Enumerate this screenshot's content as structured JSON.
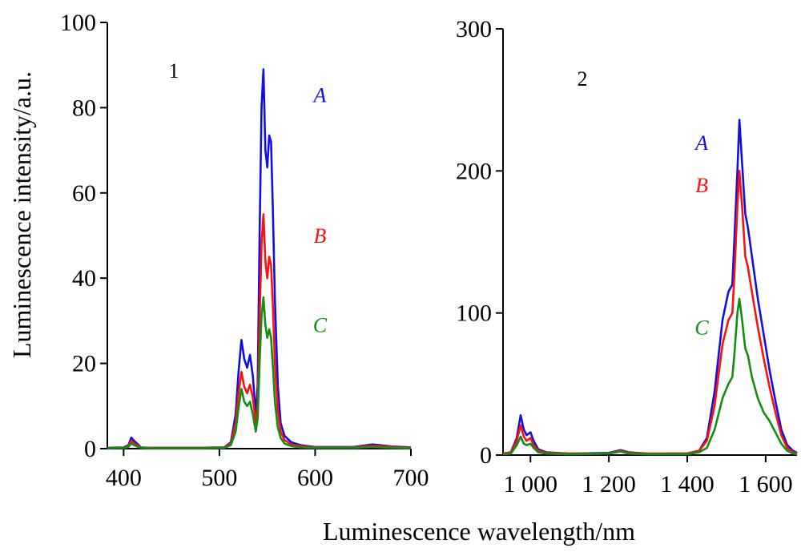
{
  "chart_data": [
    {
      "type": "line",
      "panel_label": "1",
      "ylabel": "Luminescence intensity/a.u.",
      "xlim": [
        383,
        700
      ],
      "ylim": [
        0,
        100
      ],
      "x_ticks": [
        {
          "value": 400,
          "label": "400"
        },
        {
          "value": 500,
          "label": "500"
        },
        {
          "value": 600,
          "label": "600"
        },
        {
          "value": 700,
          "label": "700"
        }
      ],
      "y_ticks": [
        {
          "value": 0,
          "label": "0"
        },
        {
          "value": 20,
          "label": "20"
        },
        {
          "value": 40,
          "label": "40"
        },
        {
          "value": 60,
          "label": "60"
        },
        {
          "value": 80,
          "label": "80"
        },
        {
          "value": 100,
          "label": "100"
        }
      ],
      "series": [
        {
          "name": "A",
          "color": "#1010e0",
          "label_pos": [
            605,
            83
          ],
          "points": [
            [
              383,
              0.2
            ],
            [
              400,
              0.3
            ],
            [
              405,
              0.8
            ],
            [
              408,
              2.6
            ],
            [
              411,
              1.8
            ],
            [
              414,
              1.2
            ],
            [
              418,
              0.3
            ],
            [
              425,
              0.2
            ],
            [
              480,
              0.2
            ],
            [
              505,
              0.3
            ],
            [
              512,
              1.5
            ],
            [
              517,
              8
            ],
            [
              520,
              18
            ],
            [
              523,
              25.5
            ],
            [
              526,
              21
            ],
            [
              529,
              19
            ],
            [
              532,
              22
            ],
            [
              535,
              17
            ],
            [
              538,
              8
            ],
            [
              540,
              15
            ],
            [
              542,
              50
            ],
            [
              544,
              80
            ],
            [
              546,
              89
            ],
            [
              548,
              70
            ],
            [
              550,
              66
            ],
            [
              552,
              73.5
            ],
            [
              554,
              72
            ],
            [
              556,
              55
            ],
            [
              558,
              35
            ],
            [
              561,
              15
            ],
            [
              564,
              6
            ],
            [
              568,
              3
            ],
            [
              575,
              1.5
            ],
            [
              585,
              0.8
            ],
            [
              600,
              0.4
            ],
            [
              640,
              0.4
            ],
            [
              650,
              0.7
            ],
            [
              660,
              1
            ],
            [
              668,
              0.8
            ],
            [
              680,
              0.5
            ],
            [
              700,
              0.3
            ]
          ]
        },
        {
          "name": "B",
          "color": "#ff1010",
          "label_pos": [
            605,
            50
          ],
          "points": [
            [
              383,
              0.2
            ],
            [
              400,
              0.2
            ],
            [
              405,
              0.6
            ],
            [
              408,
              1.8
            ],
            [
              411,
              1.2
            ],
            [
              414,
              0.8
            ],
            [
              418,
              0.2
            ],
            [
              425,
              0.2
            ],
            [
              480,
              0.2
            ],
            [
              505,
              0.3
            ],
            [
              512,
              1.2
            ],
            [
              517,
              6
            ],
            [
              520,
              13
            ],
            [
              523,
              18
            ],
            [
              526,
              14.5
            ],
            [
              529,
              13
            ],
            [
              532,
              15
            ],
            [
              535,
              12
            ],
            [
              538,
              6
            ],
            [
              540,
              10
            ],
            [
              542,
              30
            ],
            [
              544,
              48
            ],
            [
              546,
              55
            ],
            [
              548,
              44
            ],
            [
              550,
              40
            ],
            [
              552,
              45
            ],
            [
              554,
              43
            ],
            [
              556,
              33
            ],
            [
              558,
              20
            ],
            [
              561,
              9
            ],
            [
              564,
              4
            ],
            [
              568,
              2
            ],
            [
              575,
              1
            ],
            [
              585,
              0.6
            ],
            [
              600,
              0.3
            ],
            [
              640,
              0.3
            ],
            [
              650,
              0.5
            ],
            [
              660,
              0.7
            ],
            [
              668,
              0.6
            ],
            [
              680,
              0.4
            ],
            [
              700,
              0.2
            ]
          ]
        },
        {
          "name": "C",
          "color": "#109010",
          "label_pos": [
            605,
            29
          ],
          "points": [
            [
              383,
              0.1
            ],
            [
              400,
              0.2
            ],
            [
              405,
              0.4
            ],
            [
              408,
              1.2
            ],
            [
              411,
              0.8
            ],
            [
              414,
              0.5
            ],
            [
              418,
              0.2
            ],
            [
              425,
              0.1
            ],
            [
              480,
              0.1
            ],
            [
              505,
              0.2
            ],
            [
              512,
              0.8
            ],
            [
              517,
              4
            ],
            [
              520,
              9.5
            ],
            [
              523,
              14
            ],
            [
              526,
              11
            ],
            [
              529,
              10
            ],
            [
              532,
              11
            ],
            [
              535,
              8
            ],
            [
              538,
              4
            ],
            [
              540,
              7
            ],
            [
              542,
              20
            ],
            [
              544,
              31
            ],
            [
              546,
              35.5
            ],
            [
              548,
              29
            ],
            [
              550,
              26
            ],
            [
              552,
              28
            ],
            [
              554,
              26
            ],
            [
              556,
              19
            ],
            [
              558,
              11
            ],
            [
              561,
              5
            ],
            [
              564,
              2.5
            ],
            [
              568,
              1.2
            ],
            [
              575,
              0.6
            ],
            [
              585,
              0.3
            ],
            [
              600,
              0.2
            ],
            [
              640,
              0.2
            ],
            [
              650,
              0.3
            ],
            [
              660,
              0.4
            ],
            [
              668,
              0.3
            ],
            [
              680,
              0.2
            ],
            [
              700,
              0.1
            ]
          ]
        }
      ]
    },
    {
      "type": "line",
      "panel_label": "2",
      "xlabel": "Luminescence wavelength/nm",
      "xlim": [
        930,
        1680
      ],
      "ylim": [
        0,
        300
      ],
      "x_ticks": [
        {
          "value": 1000,
          "label": "1 000"
        },
        {
          "value": 1200,
          "label": "1 200"
        },
        {
          "value": 1400,
          "label": "1 400"
        },
        {
          "value": 1600,
          "label": "1 600"
        }
      ],
      "y_ticks": [
        {
          "value": 0,
          "label": "0"
        },
        {
          "value": 100,
          "label": "100"
        },
        {
          "value": 200,
          "label": "200"
        },
        {
          "value": 300,
          "label": "300"
        }
      ],
      "series": [
        {
          "name": "A",
          "color": "#1010e0",
          "label_pos": [
            1437,
            220
          ],
          "points": [
            [
              930,
              1
            ],
            [
              950,
              2
            ],
            [
              965,
              12
            ],
            [
              975,
              28
            ],
            [
              983,
              18
            ],
            [
              990,
              14
            ],
            [
              1000,
              16
            ],
            [
              1008,
              10
            ],
            [
              1020,
              4
            ],
            [
              1040,
              2
            ],
            [
              1100,
              1
            ],
            [
              1200,
              1.5
            ],
            [
              1230,
              3.5
            ],
            [
              1250,
              2
            ],
            [
              1300,
              1
            ],
            [
              1400,
              1.2
            ],
            [
              1430,
              3
            ],
            [
              1450,
              12
            ],
            [
              1470,
              45
            ],
            [
              1490,
              95
            ],
            [
              1505,
              115
            ],
            [
              1515,
              120
            ],
            [
              1520,
              150
            ],
            [
              1528,
              200
            ],
            [
              1533,
              236
            ],
            [
              1540,
              205
            ],
            [
              1548,
              170
            ],
            [
              1555,
              160
            ],
            [
              1565,
              140
            ],
            [
              1580,
              110
            ],
            [
              1595,
              85
            ],
            [
              1610,
              60
            ],
            [
              1625,
              38
            ],
            [
              1640,
              18
            ],
            [
              1655,
              7
            ],
            [
              1670,
              3
            ],
            [
              1680,
              1.5
            ]
          ]
        },
        {
          "name": "B",
          "color": "#ff1010",
          "label_pos": [
            1437,
            190
          ],
          "points": [
            [
              930,
              1
            ],
            [
              950,
              2
            ],
            [
              965,
              10
            ],
            [
              975,
              21
            ],
            [
              983,
              13
            ],
            [
              990,
              10
            ],
            [
              1000,
              12
            ],
            [
              1008,
              7
            ],
            [
              1020,
              3
            ],
            [
              1040,
              1.5
            ],
            [
              1100,
              1
            ],
            [
              1200,
              1.2
            ],
            [
              1230,
              3
            ],
            [
              1250,
              1.5
            ],
            [
              1300,
              1
            ],
            [
              1400,
              1
            ],
            [
              1430,
              3
            ],
            [
              1450,
              10
            ],
            [
              1470,
              35
            ],
            [
              1490,
              78
            ],
            [
              1505,
              95
            ],
            [
              1515,
              100
            ],
            [
              1520,
              125
            ],
            [
              1528,
              175
            ],
            [
              1533,
              200
            ],
            [
              1540,
              175
            ],
            [
              1548,
              140
            ],
            [
              1555,
              132
            ],
            [
              1565,
              115
            ],
            [
              1580,
              90
            ],
            [
              1595,
              68
            ],
            [
              1610,
              48
            ],
            [
              1625,
              30
            ],
            [
              1640,
              14
            ],
            [
              1655,
              5
            ],
            [
              1670,
              2
            ],
            [
              1680,
              1
            ]
          ]
        },
        {
          "name": "C",
          "color": "#109010",
          "label_pos": [
            1437,
            90
          ],
          "points": [
            [
              930,
              0.5
            ],
            [
              950,
              1
            ],
            [
              965,
              7
            ],
            [
              975,
              13
            ],
            [
              983,
              8
            ],
            [
              990,
              7
            ],
            [
              1000,
              8
            ],
            [
              1008,
              5
            ],
            [
              1020,
              2
            ],
            [
              1040,
              1
            ],
            [
              1100,
              0.5
            ],
            [
              1200,
              1
            ],
            [
              1230,
              2.5
            ],
            [
              1250,
              1
            ],
            [
              1300,
              0.5
            ],
            [
              1400,
              0.5
            ],
            [
              1430,
              2
            ],
            [
              1450,
              5
            ],
            [
              1470,
              18
            ],
            [
              1490,
              40
            ],
            [
              1505,
              50
            ],
            [
              1515,
              55
            ],
            [
              1520,
              70
            ],
            [
              1528,
              100
            ],
            [
              1533,
              110
            ],
            [
              1540,
              95
            ],
            [
              1548,
              75
            ],
            [
              1555,
              70
            ],
            [
              1565,
              55
            ],
            [
              1580,
              40
            ],
            [
              1595,
              30
            ],
            [
              1610,
              24
            ],
            [
              1625,
              16
            ],
            [
              1640,
              8
            ],
            [
              1655,
              3
            ],
            [
              1670,
              1
            ],
            [
              1680,
              0.5
            ]
          ]
        }
      ]
    }
  ]
}
